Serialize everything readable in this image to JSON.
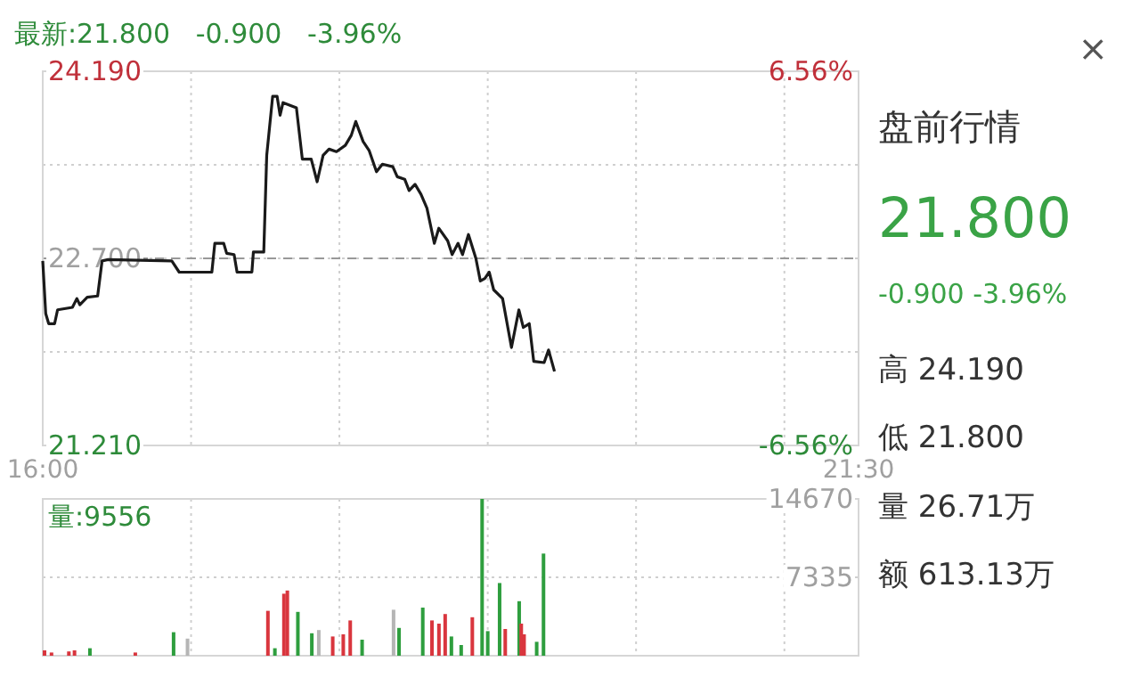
{
  "chart_data": [
    {
      "type": "line",
      "title": "最新:21.800   -0.900   -3.96%",
      "x": [
        16.0,
        16.02,
        16.04,
        16.08,
        16.1,
        16.2,
        16.23,
        16.25,
        16.3,
        16.37,
        16.4,
        16.44,
        16.87,
        16.92,
        17.14,
        17.16,
        17.22,
        17.24,
        17.29,
        17.31,
        17.41,
        17.42,
        17.49,
        17.51,
        17.55,
        17.58,
        17.6,
        17.62,
        17.71,
        17.75,
        17.81,
        17.85,
        17.89,
        17.93,
        17.98,
        18.04,
        18.08,
        18.11,
        18.16,
        18.2,
        18.25,
        18.29,
        18.36,
        18.39,
        18.44,
        18.47,
        18.51,
        18.55,
        18.59,
        18.64,
        18.67,
        18.73,
        18.76,
        18.8,
        18.83,
        18.87,
        18.92,
        18.95,
        18.98,
        19.01,
        19.04,
        19.1,
        19.16,
        19.21,
        19.24,
        19.28,
        19.31,
        19.38,
        19.41,
        19.45
      ],
      "series": [
        {
          "color": "#1a1a1a",
          "values": [
            22.68,
            22.26,
            22.18,
            22.18,
            22.29,
            22.31,
            22.38,
            22.33,
            22.39,
            22.4,
            22.68,
            22.69,
            22.68,
            22.59,
            22.59,
            22.82,
            22.82,
            22.74,
            22.73,
            22.59,
            22.59,
            22.75,
            22.75,
            23.52,
            23.99,
            23.99,
            23.84,
            23.94,
            23.9,
            23.49,
            23.49,
            23.31,
            23.52,
            23.57,
            23.55,
            23.6,
            23.68,
            23.79,
            23.63,
            23.56,
            23.39,
            23.45,
            23.43,
            23.35,
            23.33,
            23.24,
            23.29,
            23.21,
            23.1,
            22.82,
            22.94,
            22.84,
            22.73,
            22.82,
            22.73,
            22.89,
            22.7,
            22.52,
            22.54,
            22.59,
            22.45,
            22.38,
            21.99,
            22.29,
            22.15,
            22.18,
            21.88,
            21.87,
            21.97,
            21.8
          ]
        }
      ],
      "xlim": [
        16,
        21.5
      ],
      "xticks": [
        {
          "value": 16,
          "label": "16:00"
        },
        {
          "value": 17,
          "label": null
        },
        {
          "value": 18,
          "label": null
        },
        {
          "value": 19,
          "label": null
        },
        {
          "value": 20,
          "label": null
        },
        {
          "value": 21,
          "label": null
        },
        {
          "value": 21.5,
          "label": "21:30"
        }
      ],
      "ylim": [
        21.21,
        24.19
      ],
      "yticks": [
        {
          "value": 21.21,
          "label": "21.210"
        },
        {
          "value": 21.955,
          "label": null
        },
        {
          "value": 22.7,
          "label": "22.700"
        },
        {
          "value": 23.445,
          "label": null
        },
        {
          "value": 24.19,
          "label": "24.190"
        }
      ],
      "y2lim": [
        -6.56,
        6.56
      ],
      "y2ticks": [
        {
          "value": -6.56,
          "label": "-6.56%"
        },
        {
          "value": 6.56,
          "label": "6.56%"
        }
      ],
      "ref_lines": [
        {
          "axis": "y",
          "value": 22.7,
          "color": "#999999",
          "line_style": "dashed"
        }
      ],
      "grid": true
    },
    {
      "type": "bar",
      "title": "量:9556",
      "x": [
        16.012,
        16.059,
        16.176,
        16.214,
        16.318,
        16.624,
        16.882,
        16.976,
        17.518,
        17.565,
        17.626,
        17.649,
        17.72,
        17.814,
        17.861,
        17.955,
        18.026,
        18.073,
        18.153,
        18.365,
        18.402,
        18.562,
        18.624,
        18.671,
        18.713,
        18.755,
        18.821,
        18.896,
        18.962,
        19.0,
        19.08,
        19.118,
        19.212,
        19.226,
        19.245,
        19.33,
        19.376
      ],
      "values": [
        500,
        300,
        400,
        500,
        700,
        300,
        2200,
        1600,
        4200,
        700,
        5800,
        6100,
        4100,
        2100,
        2400,
        1800,
        2000,
        3300,
        1500,
        4300,
        2600,
        4500,
        3300,
        3000,
        3900,
        1800,
        1000,
        3600,
        14670,
        2300,
        6800,
        2500,
        5100,
        3000,
        2000,
        1300,
        9556
      ],
      "colors": [
        "#d9363e",
        "#d9363e",
        "#d9363e",
        "#d9363e",
        "#2e9e3e",
        "#d9363e",
        "#2e9e3e",
        "#b5b5b5",
        "#d9363e",
        "#2e9e3e",
        "#d9363e",
        "#d9363e",
        "#2e9e3e",
        "#2e9e3e",
        "#b5b5b5",
        "#d9363e",
        "#d9363e",
        "#d9363e",
        "#2e9e3e",
        "#b5b5b5",
        "#2e9e3e",
        "#2e9e3e",
        "#d9363e",
        "#d9363e",
        "#d9363e",
        "#2e9e3e",
        "#2e9e3e",
        "#d9363e",
        "#2e9e3e",
        "#2e9e3e",
        "#2e9e3e",
        "#d9363e",
        "#2e9e3e",
        "#d9363e",
        "#d9363e",
        "#2e9e3e",
        "#2e9e3e"
      ],
      "xlim": [
        16,
        21.5
      ],
      "xticks": [
        {
          "value": 17,
          "label": null
        },
        {
          "value": 18,
          "label": null
        },
        {
          "value": 19,
          "label": null
        },
        {
          "value": 20,
          "label": null
        },
        {
          "value": 21,
          "label": null
        }
      ],
      "ylim": [
        0,
        14670
      ],
      "yticks": [
        7335,
        14670
      ],
      "tick_labels": "y",
      "grid": true
    },
    {
      "type": "other",
      "annotations": [
        "×",
        "盘前行情",
        "21.800",
        "-0.900  -3.96%",
        "高  24.190",
        "低  21.800",
        "量  26.71万",
        "额  613.13万"
      ]
    }
  ]
}
